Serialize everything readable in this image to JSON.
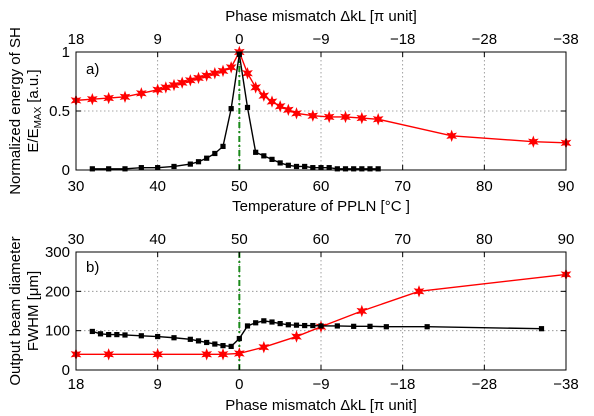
{
  "chart_data": [
    {
      "panel": "a)",
      "type": "line",
      "top_axis_label": "Phase mismatch  ΔkL  [π unit]",
      "top_ticks": [
        "18",
        "9",
        "0",
        "−9",
        "−18",
        "−28",
        "−38"
      ],
      "top_tick_temps": [
        30,
        40,
        50,
        60,
        70,
        80,
        90
      ],
      "xlabel": "Temperature of PPLN [°C ]",
      "ylabel_line1": "Normalized energy of SH",
      "ylabel_line2": "E/E",
      "ylabel_sub": "MAX",
      "ylabel_unit": "[a.u.]",
      "xlim": [
        30,
        90
      ],
      "ylim": [
        0,
        1
      ],
      "xticks": [
        30,
        40,
        50,
        60,
        70,
        80,
        90
      ],
      "yticks": [
        0,
        0.5,
        1
      ],
      "ytick_labels": [
        "0",
        "0.5",
        "1"
      ],
      "grid": true,
      "vline_x": 50,
      "series": [
        {
          "color": "#ff0000",
          "marker": "star",
          "x": [
            30,
            32,
            34,
            36,
            38,
            40,
            41,
            42,
            43,
            44,
            45,
            46,
            47,
            48,
            49,
            50,
            51,
            52,
            53,
            54,
            55,
            56,
            57,
            59,
            61,
            63,
            65,
            67,
            76,
            86,
            90
          ],
          "y": [
            0.59,
            0.6,
            0.61,
            0.62,
            0.65,
            0.68,
            0.7,
            0.72,
            0.74,
            0.76,
            0.78,
            0.8,
            0.82,
            0.84,
            0.87,
            1.0,
            0.82,
            0.7,
            0.63,
            0.58,
            0.54,
            0.51,
            0.48,
            0.46,
            0.45,
            0.45,
            0.44,
            0.43,
            0.29,
            0.24,
            0.23
          ]
        },
        {
          "color": "#000000",
          "marker": "square",
          "x": [
            32,
            34,
            36,
            38,
            40,
            42,
            44,
            45,
            46,
            47,
            48,
            49,
            50,
            51,
            52,
            53,
            54,
            55,
            56,
            57,
            58,
            59,
            60,
            61,
            62,
            63,
            64,
            65,
            66,
            67
          ],
          "y": [
            0.01,
            0.01,
            0.01,
            0.02,
            0.02,
            0.03,
            0.05,
            0.07,
            0.1,
            0.14,
            0.2,
            0.52,
            0.98,
            0.53,
            0.15,
            0.12,
            0.09,
            0.06,
            0.04,
            0.03,
            0.03,
            0.02,
            0.02,
            0.02,
            0.01,
            0.01,
            0.01,
            0.01,
            0.01,
            0.01
          ]
        }
      ]
    },
    {
      "panel": "b)",
      "type": "line",
      "top_axis_label": "",
      "xlabel": "Phase mismatch  ΔkL  [π unit]",
      "ylabel_line1": "Output beam diameter",
      "ylabel_line2": "FWHM",
      "ylabel_unit": " [μm]",
      "xlim": [
        30,
        90
      ],
      "ylim": [
        0,
        300
      ],
      "xticks": [
        30,
        40,
        50,
        60,
        70,
        80,
        90
      ],
      "yticks": [
        0,
        100,
        200,
        300
      ],
      "ytick_labels": [
        "0",
        "100",
        "200",
        "300"
      ],
      "bottom_ticks": [
        "18",
        "9",
        "0",
        "−9",
        "−18",
        "−28",
        "−38"
      ],
      "grid": true,
      "vline_x": 50,
      "series": [
        {
          "color": "#ff0000",
          "marker": "star",
          "x": [
            30,
            34,
            40,
            46,
            48,
            50,
            53,
            57,
            60,
            65,
            72,
            90
          ],
          "y": [
            40,
            40,
            40,
            40,
            40,
            42,
            58,
            85,
            110,
            150,
            200,
            243
          ]
        },
        {
          "color": "#000000",
          "marker": "square",
          "x": [
            32,
            33,
            34,
            35,
            36,
            38,
            40,
            42,
            44,
            45,
            46,
            47,
            48,
            49,
            50,
            51,
            52,
            53,
            54,
            55,
            56,
            57,
            58,
            59,
            60,
            62,
            64,
            66,
            68,
            73,
            87
          ],
          "y": [
            98,
            92,
            90,
            90,
            89,
            87,
            85,
            82,
            78,
            74,
            70,
            66,
            62,
            60,
            80,
            112,
            120,
            125,
            122,
            118,
            115,
            114,
            113,
            113,
            112,
            112,
            111,
            111,
            110,
            110,
            105
          ]
        }
      ]
    }
  ]
}
